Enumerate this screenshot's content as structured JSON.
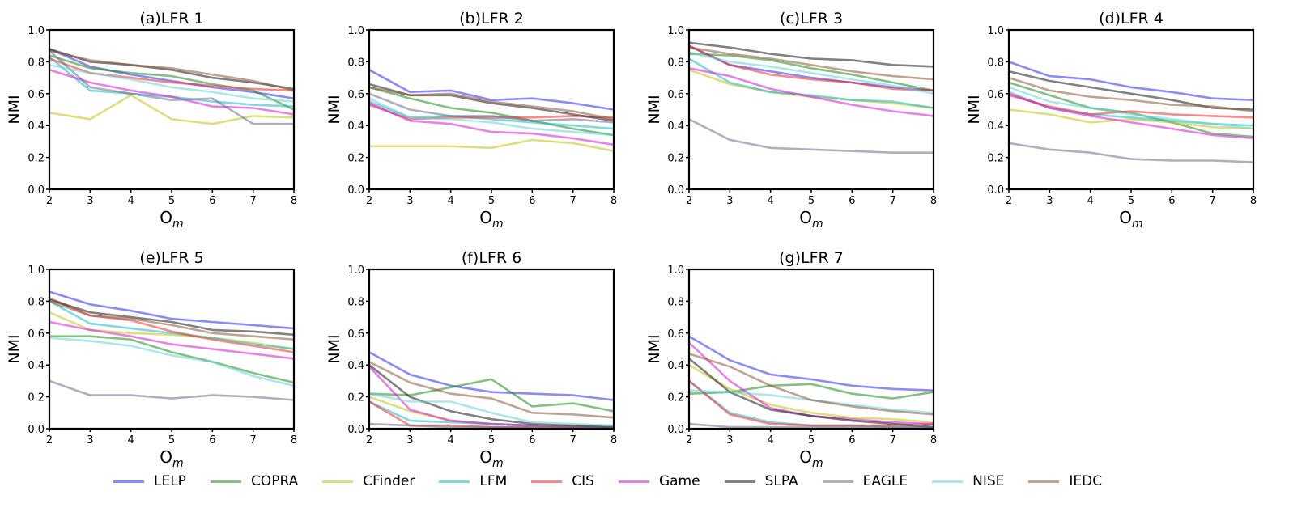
{
  "legend": [
    {
      "name": "LELP",
      "color": "#2b2bf0"
    },
    {
      "name": "COPRA",
      "color": "#1f8a1f"
    },
    {
      "name": "CFinder",
      "color": "#c2c21a"
    },
    {
      "name": "LFM",
      "color": "#19b9c2"
    },
    {
      "name": "CIS",
      "color": "#f02b2b"
    },
    {
      "name": "Game",
      "color": "#d21bd2"
    },
    {
      "name": "SLPA",
      "color": "#1a1a1a"
    },
    {
      "name": "EAGLE",
      "color": "#6e6e8a"
    },
    {
      "name": "NISE",
      "color": "#6ad1d6"
    },
    {
      "name": "IEDC",
      "color": "#8b5a3a"
    }
  ],
  "chart_data": [
    {
      "type": "line",
      "title": "(a)LFR 1",
      "xlabel": "O",
      "xlabel_sub": "m",
      "ylabel": "NMI",
      "x": [
        2,
        3,
        4,
        5,
        6,
        7,
        8
      ],
      "ylim": [
        0,
        1.0
      ],
      "yticks": [
        "0.0",
        "0.2",
        "0.4",
        "0.6",
        "0.8",
        "1.0"
      ],
      "xticks": [
        "2",
        "3",
        "4",
        "5",
        "6",
        "7",
        "8"
      ],
      "series": [
        {
          "name": "LELP",
          "values": [
            0.88,
            0.77,
            0.72,
            0.68,
            0.64,
            0.61,
            0.57
          ]
        },
        {
          "name": "COPRA",
          "values": [
            0.84,
            0.76,
            0.73,
            0.71,
            0.66,
            0.62,
            0.5
          ]
        },
        {
          "name": "CFinder",
          "values": [
            0.48,
            0.44,
            0.59,
            0.44,
            0.41,
            0.46,
            0.45
          ]
        },
        {
          "name": "LFM",
          "values": [
            0.83,
            0.62,
            0.6,
            0.58,
            0.55,
            0.53,
            0.52
          ]
        },
        {
          "name": "CIS",
          "values": [
            0.82,
            0.73,
            0.7,
            0.67,
            0.65,
            0.63,
            0.62
          ]
        },
        {
          "name": "Game",
          "values": [
            0.75,
            0.67,
            0.62,
            0.58,
            0.52,
            0.51,
            0.47
          ]
        },
        {
          "name": "SLPA",
          "values": [
            0.88,
            0.8,
            0.78,
            0.75,
            0.7,
            0.67,
            0.63
          ]
        },
        {
          "name": "EAGLE",
          "values": [
            0.87,
            0.64,
            0.6,
            0.56,
            0.57,
            0.41,
            0.41
          ]
        },
        {
          "name": "NISE",
          "values": [
            0.78,
            0.73,
            0.69,
            0.64,
            0.61,
            0.57,
            0.55
          ]
        },
        {
          "name": "IEDC",
          "values": [
            0.87,
            0.81,
            0.78,
            0.76,
            0.72,
            0.68,
            0.62
          ]
        }
      ]
    },
    {
      "type": "line",
      "title": "(b)LFR 2",
      "xlabel": "O",
      "xlabel_sub": "m",
      "ylabel": "NMI",
      "x": [
        2,
        3,
        4,
        5,
        6,
        7,
        8
      ],
      "ylim": [
        0,
        1.0
      ],
      "yticks": [
        "0.0",
        "0.2",
        "0.4",
        "0.6",
        "0.8",
        "1.0"
      ],
      "xticks": [
        "2",
        "3",
        "4",
        "5",
        "6",
        "7",
        "8"
      ],
      "series": [
        {
          "name": "LELP",
          "values": [
            0.75,
            0.61,
            0.62,
            0.56,
            0.57,
            0.54,
            0.5
          ]
        },
        {
          "name": "COPRA",
          "values": [
            0.64,
            0.57,
            0.51,
            0.48,
            0.43,
            0.38,
            0.34
          ]
        },
        {
          "name": "CFinder",
          "values": [
            0.27,
            0.27,
            0.27,
            0.26,
            0.31,
            0.29,
            0.24
          ]
        },
        {
          "name": "LFM",
          "values": [
            0.55,
            0.45,
            0.46,
            0.44,
            0.42,
            0.4,
            0.38
          ]
        },
        {
          "name": "CIS",
          "values": [
            0.53,
            0.44,
            0.45,
            0.45,
            0.45,
            0.46,
            0.45
          ]
        },
        {
          "name": "Game",
          "values": [
            0.54,
            0.43,
            0.41,
            0.36,
            0.35,
            0.32,
            0.28
          ]
        },
        {
          "name": "SLPA",
          "values": [
            0.66,
            0.59,
            0.59,
            0.54,
            0.51,
            0.47,
            0.43
          ]
        },
        {
          "name": "EAGLE",
          "values": [
            0.6,
            0.5,
            0.46,
            0.46,
            0.43,
            0.44,
            0.42
          ]
        },
        {
          "name": "NISE",
          "values": [
            0.57,
            0.45,
            0.44,
            0.42,
            0.38,
            0.36,
            0.34
          ]
        },
        {
          "name": "IEDC",
          "values": [
            0.64,
            0.59,
            0.6,
            0.55,
            0.52,
            0.49,
            0.44
          ]
        }
      ]
    },
    {
      "type": "line",
      "title": "(c)LFR 3",
      "xlabel": "O",
      "xlabel_sub": "m",
      "ylabel": "NMI",
      "x": [
        2,
        3,
        4,
        5,
        6,
        7,
        8
      ],
      "ylim": [
        0,
        1.0
      ],
      "yticks": [
        "0.0",
        "0.2",
        "0.4",
        "0.6",
        "0.8",
        "1.0"
      ],
      "xticks": [
        "2",
        "3",
        "4",
        "5",
        "6",
        "7",
        "8"
      ],
      "series": [
        {
          "name": "LELP",
          "values": [
            0.9,
            0.78,
            0.74,
            0.7,
            0.67,
            0.64,
            0.62
          ]
        },
        {
          "name": "COPRA",
          "values": [
            0.85,
            0.84,
            0.81,
            0.76,
            0.72,
            0.67,
            0.62
          ]
        },
        {
          "name": "CFinder",
          "values": [
            0.75,
            0.66,
            0.61,
            0.58,
            0.56,
            0.54,
            0.51
          ]
        },
        {
          "name": "LFM",
          "values": [
            0.82,
            0.67,
            0.61,
            0.59,
            0.56,
            0.55,
            0.51
          ]
        },
        {
          "name": "CIS",
          "values": [
            0.9,
            0.78,
            0.72,
            0.69,
            0.67,
            0.63,
            0.62
          ]
        },
        {
          "name": "Game",
          "values": [
            0.76,
            0.71,
            0.63,
            0.58,
            0.53,
            0.49,
            0.46
          ]
        },
        {
          "name": "SLPA",
          "values": [
            0.92,
            0.89,
            0.85,
            0.82,
            0.81,
            0.78,
            0.77
          ]
        },
        {
          "name": "EAGLE",
          "values": [
            0.44,
            0.31,
            0.26,
            0.25,
            0.24,
            0.23,
            0.23
          ]
        },
        {
          "name": "NISE",
          "values": [
            0.86,
            0.8,
            0.77,
            0.73,
            0.69,
            0.65,
            0.6
          ]
        },
        {
          "name": "IEDC",
          "values": [
            0.89,
            0.85,
            0.82,
            0.78,
            0.74,
            0.71,
            0.69
          ]
        }
      ]
    },
    {
      "type": "line",
      "title": "(d)LFR 4",
      "xlabel": "O",
      "xlabel_sub": "m",
      "ylabel": "NMI",
      "x": [
        2,
        3,
        4,
        5,
        6,
        7,
        8
      ],
      "ylim": [
        0,
        1.0
      ],
      "yticks": [
        "0.0",
        "0.2",
        "0.4",
        "0.6",
        "0.8",
        "1.0"
      ],
      "xticks": [
        "2",
        "3",
        "4",
        "5",
        "6",
        "7",
        "8"
      ],
      "series": [
        {
          "name": "LELP",
          "values": [
            0.8,
            0.71,
            0.69,
            0.64,
            0.61,
            0.57,
            0.56
          ]
        },
        {
          "name": "COPRA",
          "values": [
            0.67,
            0.59,
            0.51,
            0.48,
            0.42,
            0.35,
            0.33
          ]
        },
        {
          "name": "CFinder",
          "values": [
            0.5,
            0.47,
            0.42,
            0.44,
            0.42,
            0.39,
            0.38
          ]
        },
        {
          "name": "LFM",
          "values": [
            0.61,
            0.51,
            0.47,
            0.45,
            0.43,
            0.41,
            0.4
          ]
        },
        {
          "name": "CIS",
          "values": [
            0.59,
            0.52,
            0.47,
            0.49,
            0.47,
            0.46,
            0.45
          ]
        },
        {
          "name": "Game",
          "values": [
            0.6,
            0.51,
            0.46,
            0.42,
            0.38,
            0.34,
            0.32
          ]
        },
        {
          "name": "SLPA",
          "values": [
            0.74,
            0.68,
            0.64,
            0.6,
            0.56,
            0.51,
            0.5
          ]
        },
        {
          "name": "EAGLE",
          "values": [
            0.29,
            0.25,
            0.23,
            0.19,
            0.18,
            0.18,
            0.17
          ]
        },
        {
          "name": "NISE",
          "values": [
            0.64,
            0.55,
            0.51,
            0.47,
            0.44,
            0.41,
            0.38
          ]
        },
        {
          "name": "IEDC",
          "values": [
            0.7,
            0.62,
            0.58,
            0.56,
            0.53,
            0.52,
            0.49
          ]
        }
      ]
    },
    {
      "type": "line",
      "title": "(e)LFR 5",
      "xlabel": "O",
      "xlabel_sub": "m",
      "ylabel": "NMI",
      "x": [
        2,
        3,
        4,
        5,
        6,
        7,
        8
      ],
      "ylim": [
        0,
        1.0
      ],
      "yticks": [
        "0.0",
        "0.2",
        "0.4",
        "0.6",
        "0.8",
        "1.0"
      ],
      "xticks": [
        "2",
        "3",
        "4",
        "5",
        "6",
        "7",
        "8"
      ],
      "series": [
        {
          "name": "LELP",
          "values": [
            0.86,
            0.78,
            0.74,
            0.69,
            0.67,
            0.65,
            0.63
          ]
        },
        {
          "name": "COPRA",
          "values": [
            0.58,
            0.58,
            0.56,
            0.48,
            0.42,
            0.35,
            0.29
          ]
        },
        {
          "name": "CFinder",
          "values": [
            0.73,
            0.62,
            0.6,
            0.59,
            0.57,
            0.54,
            0.5
          ]
        },
        {
          "name": "LFM",
          "values": [
            0.8,
            0.66,
            0.63,
            0.6,
            0.57,
            0.53,
            0.5
          ]
        },
        {
          "name": "CIS",
          "values": [
            0.82,
            0.71,
            0.68,
            0.61,
            0.56,
            0.52,
            0.48
          ]
        },
        {
          "name": "Game",
          "values": [
            0.67,
            0.62,
            0.58,
            0.53,
            0.5,
            0.47,
            0.44
          ]
        },
        {
          "name": "SLPA",
          "values": [
            0.81,
            0.73,
            0.7,
            0.67,
            0.62,
            0.61,
            0.59
          ]
        },
        {
          "name": "EAGLE",
          "values": [
            0.3,
            0.21,
            0.21,
            0.19,
            0.21,
            0.2,
            0.18
          ]
        },
        {
          "name": "NISE",
          "values": [
            0.57,
            0.55,
            0.52,
            0.46,
            0.42,
            0.33,
            0.27
          ]
        },
        {
          "name": "IEDC",
          "values": [
            0.8,
            0.71,
            0.69,
            0.65,
            0.6,
            0.58,
            0.56
          ]
        }
      ]
    },
    {
      "type": "line",
      "title": "(f)LFR 6",
      "xlabel": "O",
      "xlabel_sub": "m",
      "ylabel": "NMI",
      "x": [
        2,
        3,
        4,
        5,
        6,
        7,
        8
      ],
      "ylim": [
        0,
        1.0
      ],
      "yticks": [
        "0.0",
        "0.2",
        "0.4",
        "0.6",
        "0.8",
        "1.0"
      ],
      "xticks": [
        "2",
        "3",
        "4",
        "5",
        "6",
        "7",
        "8"
      ],
      "series": [
        {
          "name": "LELP",
          "values": [
            0.48,
            0.34,
            0.27,
            0.23,
            0.22,
            0.21,
            0.18
          ]
        },
        {
          "name": "COPRA",
          "values": [
            0.22,
            0.21,
            0.26,
            0.31,
            0.14,
            0.16,
            0.11
          ]
        },
        {
          "name": "CFinder",
          "values": [
            0.2,
            0.11,
            0.05,
            0.03,
            0.02,
            0.02,
            0.01
          ]
        },
        {
          "name": "LFM",
          "values": [
            0.17,
            0.05,
            0.04,
            0.03,
            0.02,
            0.01,
            0.01
          ]
        },
        {
          "name": "CIS",
          "values": [
            0.17,
            0.02,
            0.02,
            0.01,
            0.01,
            0.01,
            0.01
          ]
        },
        {
          "name": "Game",
          "values": [
            0.39,
            0.12,
            0.05,
            0.03,
            0.02,
            0.01,
            0.01
          ]
        },
        {
          "name": "SLPA",
          "values": [
            0.4,
            0.2,
            0.11,
            0.06,
            0.03,
            0.02,
            0.01
          ]
        },
        {
          "name": "EAGLE",
          "values": [
            0.03,
            0.02,
            0.01,
            0.01,
            0.01,
            0.01,
            0.01
          ]
        },
        {
          "name": "NISE",
          "values": [
            0.22,
            0.17,
            0.17,
            0.1,
            0.04,
            0.03,
            0.02
          ]
        },
        {
          "name": "IEDC",
          "values": [
            0.42,
            0.29,
            0.22,
            0.19,
            0.1,
            0.09,
            0.07
          ]
        }
      ]
    },
    {
      "type": "line",
      "title": "(g)LFR 7",
      "xlabel": "O",
      "xlabel_sub": "m",
      "ylabel": "NMI",
      "x": [
        2,
        3,
        4,
        5,
        6,
        7,
        8
      ],
      "ylim": [
        0,
        1.0
      ],
      "yticks": [
        "0.0",
        "0.2",
        "0.4",
        "0.6",
        "0.8",
        "1.0"
      ],
      "xticks": [
        "2",
        "3",
        "4",
        "5",
        "6",
        "7",
        "8"
      ],
      "series": [
        {
          "name": "LELP",
          "values": [
            0.58,
            0.43,
            0.34,
            0.31,
            0.27,
            0.25,
            0.24
          ]
        },
        {
          "name": "COPRA",
          "values": [
            0.22,
            0.23,
            0.27,
            0.28,
            0.22,
            0.19,
            0.23
          ]
        },
        {
          "name": "CFinder",
          "values": [
            0.4,
            0.25,
            0.15,
            0.1,
            0.07,
            0.06,
            0.04
          ]
        },
        {
          "name": "LFM",
          "values": [
            0.3,
            0.1,
            0.04,
            0.02,
            0.02,
            0.01,
            0.01
          ]
        },
        {
          "name": "CIS",
          "values": [
            0.3,
            0.09,
            0.03,
            0.02,
            0.02,
            0.02,
            0.03
          ]
        },
        {
          "name": "Game",
          "values": [
            0.54,
            0.3,
            0.13,
            0.08,
            0.06,
            0.04,
            0.03
          ]
        },
        {
          "name": "SLPA",
          "values": [
            0.44,
            0.23,
            0.12,
            0.08,
            0.05,
            0.03,
            0.01
          ]
        },
        {
          "name": "EAGLE",
          "values": [
            0.03,
            0.01,
            0.01,
            0.01,
            0.01,
            0.01,
            0.01
          ]
        },
        {
          "name": "NISE",
          "values": [
            0.24,
            0.23,
            0.21,
            0.18,
            0.15,
            0.12,
            0.1
          ]
        },
        {
          "name": "IEDC",
          "values": [
            0.47,
            0.39,
            0.27,
            0.18,
            0.14,
            0.11,
            0.09
          ]
        }
      ]
    }
  ]
}
